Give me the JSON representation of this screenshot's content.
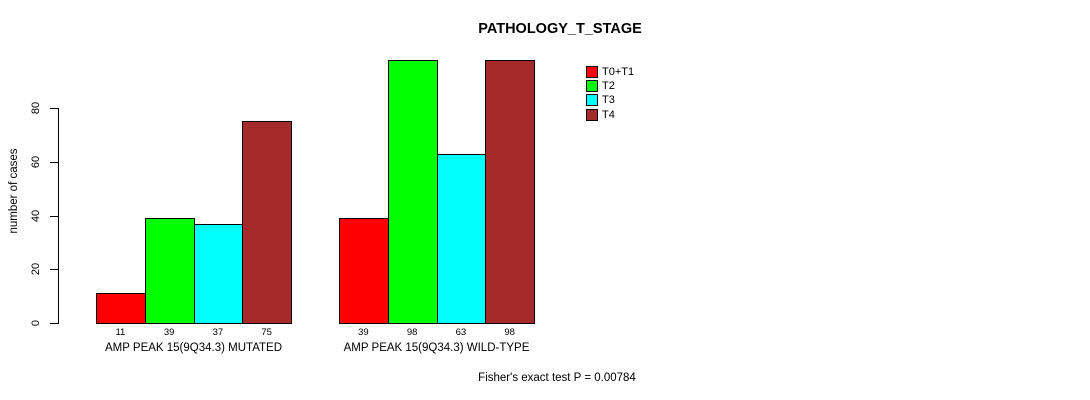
{
  "title": "PATHOLOGY_T_STAGE",
  "y_axis_label": "number of cases",
  "footnote": "Fisher's exact test P = 0.00784",
  "chart_data": {
    "type": "bar",
    "title": "PATHOLOGY_T_STAGE",
    "xlabel": "",
    "ylabel": "number of cases",
    "y_ticks": [
      0,
      20,
      40,
      60,
      80
    ],
    "ylim": [
      0,
      105
    ],
    "grid": false,
    "legend_position": "top-right",
    "categories": [
      "AMP PEAK 15(9Q34.3) MUTATED",
      "AMP PEAK 15(9Q34.3) WILD-TYPE"
    ],
    "series": [
      {
        "name": "T0+T1",
        "color": "#FF0000",
        "values": [
          11,
          39
        ]
      },
      {
        "name": "T2",
        "color": "#00FF00",
        "values": [
          39,
          98
        ]
      },
      {
        "name": "T3",
        "color": "#00FFFF",
        "values": [
          37,
          63
        ]
      },
      {
        "name": "T4",
        "color": "#A52A2A",
        "values": [
          75,
          98
        ]
      }
    ],
    "bar_value_labels_shown": true,
    "annotation": "Fisher's exact test P = 0.00784"
  }
}
